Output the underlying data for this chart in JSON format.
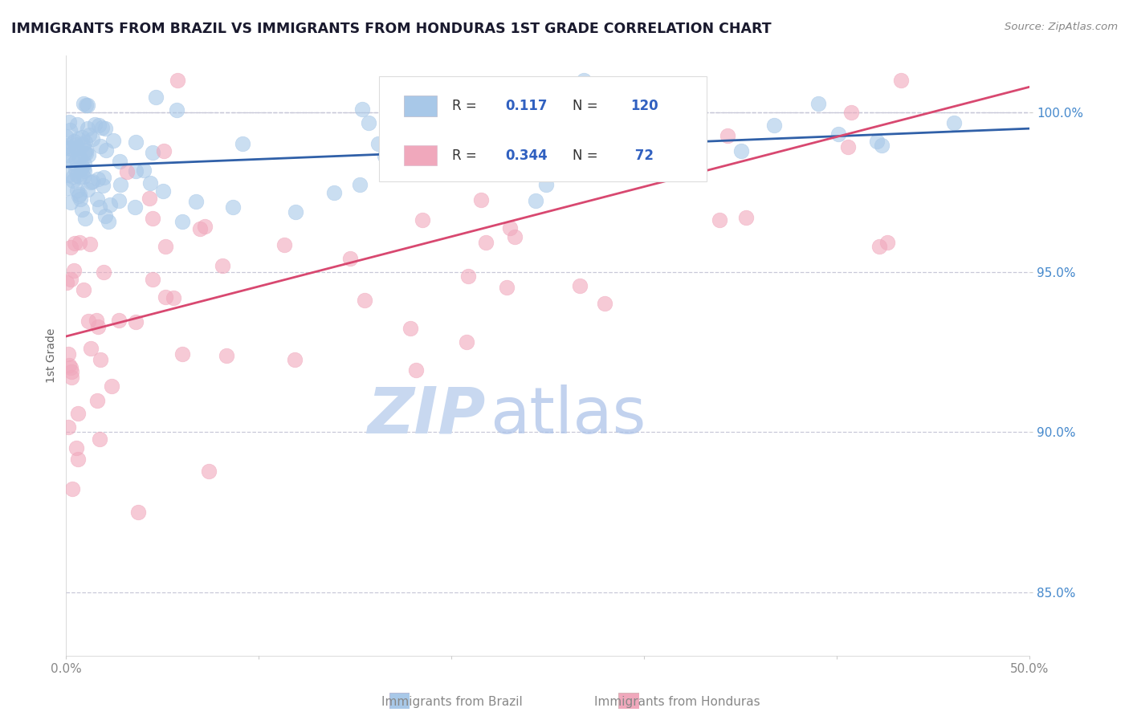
{
  "title": "IMMIGRANTS FROM BRAZIL VS IMMIGRANTS FROM HONDURAS 1ST GRADE CORRELATION CHART",
  "source": "Source: ZipAtlas.com",
  "xlabel_bottom": "Immigrants from Brazil",
  "xlabel_bottom2": "Immigrants from Honduras",
  "ylabel": "1st Grade",
  "xlim": [
    0.0,
    50.0
  ],
  "ylim": [
    83.0,
    101.8
  ],
  "yticks": [
    85.0,
    90.0,
    95.0,
    100.0
  ],
  "xticks": [
    0.0,
    10.0,
    20.0,
    30.0,
    40.0,
    50.0
  ],
  "xtick_labels": [
    "0.0%",
    "",
    "",
    "",
    "",
    "50.0%"
  ],
  "ytick_labels": [
    "85.0%",
    "90.0%",
    "95.0%",
    "100.0%"
  ],
  "brazil_R": 0.117,
  "brazil_N": 120,
  "honduras_R": 0.344,
  "honduras_N": 72,
  "brazil_color": "#A8C8E8",
  "honduras_color": "#F0A8BC",
  "brazil_line_color": "#3060A8",
  "honduras_line_color": "#D84870",
  "dashed_line_color": "#C8C8D8",
  "watermark_zip_color": "#C8D8F0",
  "watermark_atlas_color": "#A8C0E8",
  "background_color": "#FFFFFF",
  "legend_value_color": "#3060C0",
  "title_color": "#1A1A2E",
  "source_color": "#888888",
  "ytick_color": "#4488CC",
  "xtick_color": "#888888"
}
